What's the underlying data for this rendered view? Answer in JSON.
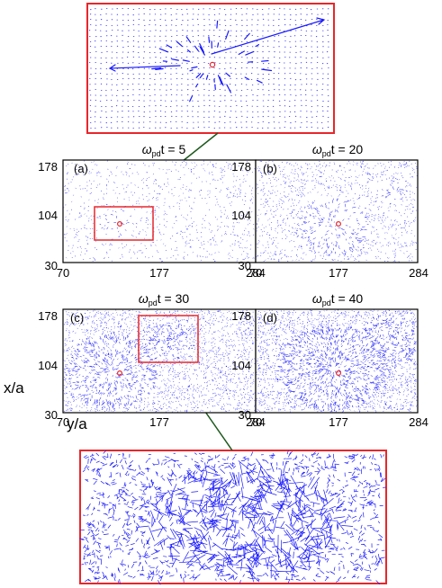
{
  "colors": {
    "vector": "#1a1aff",
    "frame": "#e8262b",
    "marker": "#e8262b",
    "connector": "#1e5a1e",
    "axis": "#000000"
  },
  "chart_data": [
    {
      "type": "vector-field",
      "panel_label": "(a)",
      "title_symbol": "ω",
      "title_sub": "pd",
      "title_rest": "t = 5",
      "xlim": [
        70,
        284
      ],
      "ylim": [
        30,
        178
      ],
      "x_ticks": [
        "70",
        "177",
        "284"
      ],
      "y_ticks": [
        "30",
        "104",
        "178"
      ],
      "xlabel": "",
      "ylabel": "",
      "marker": [
        177,
        104
      ]
    },
    {
      "type": "vector-field",
      "panel_label": "(b)",
      "title_symbol": "ω",
      "title_sub": "pd",
      "title_rest": "t = 20",
      "xlim": [
        70,
        284
      ],
      "ylim": [
        30,
        178
      ],
      "x_ticks": [
        "70",
        "177",
        "284"
      ],
      "y_ticks": [
        "30",
        "104",
        "178"
      ],
      "xlabel": "",
      "ylabel": "",
      "marker": [
        177,
        104
      ]
    },
    {
      "type": "vector-field",
      "panel_label": "(c)",
      "title_symbol": "ω",
      "title_sub": "pd",
      "title_rest": "t = 30",
      "xlim": [
        70,
        284
      ],
      "ylim": [
        30,
        178
      ],
      "x_ticks": [
        "70",
        "177",
        "284"
      ],
      "y_ticks": [
        "30",
        "104",
        "178"
      ],
      "xlabel": "y/a",
      "ylabel": "x/a",
      "marker": [
        177,
        104
      ]
    },
    {
      "type": "vector-field",
      "panel_label": "(d)",
      "title_symbol": "ω",
      "title_sub": "pd",
      "title_rest": "t = 40",
      "xlim": [
        70,
        284
      ],
      "ylim": [
        30,
        178
      ],
      "x_ticks": [
        "70",
        "177",
        "284"
      ],
      "y_ticks": [
        "30",
        "104",
        "178"
      ],
      "xlabel": "",
      "ylabel": "",
      "marker": [
        177,
        104
      ]
    }
  ]
}
